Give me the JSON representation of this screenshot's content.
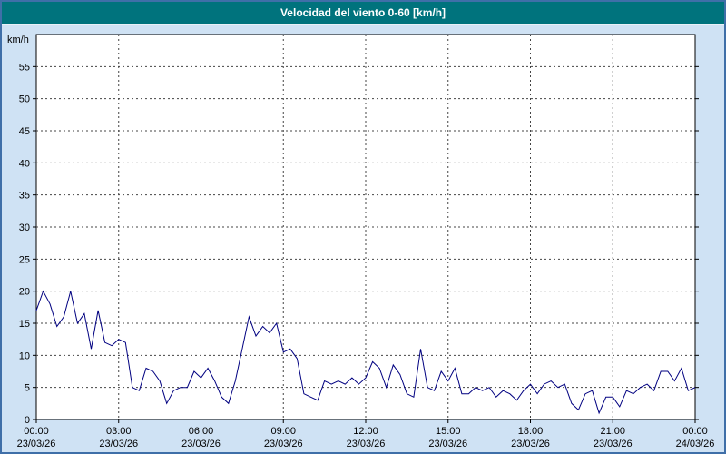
{
  "window": {
    "title": "Velocidad del viento 0-60 [km/h]"
  },
  "colors": {
    "frame": "#3f6fa8",
    "titlebar": "#00737d",
    "titlebar_text": "#ffffff",
    "background": "#cfe2f4",
    "plot_background": "#ffffff",
    "plot_border": "#000000",
    "grid": "#444444",
    "tick_text": "#000000",
    "line": "#000080"
  },
  "chart_data": {
    "type": "line",
    "title": "Velocidad del viento 0-60 [km/h]",
    "xlabel": "",
    "ylabel": "km/h",
    "ylim": [
      0,
      60
    ],
    "yticks": [
      0,
      5,
      10,
      15,
      20,
      25,
      30,
      35,
      40,
      45,
      50,
      55
    ],
    "xlim_hours": [
      0,
      24
    ],
    "xticks": [
      {
        "hour": 0,
        "time": "00:00",
        "date": "23/03/26"
      },
      {
        "hour": 3,
        "time": "03:00",
        "date": "23/03/26"
      },
      {
        "hour": 6,
        "time": "06:00",
        "date": "23/03/26"
      },
      {
        "hour": 9,
        "time": "09:00",
        "date": "23/03/26"
      },
      {
        "hour": 12,
        "time": "12:00",
        "date": "23/03/26"
      },
      {
        "hour": 15,
        "time": "15:00",
        "date": "23/03/26"
      },
      {
        "hour": 18,
        "time": "18:00",
        "date": "23/03/26"
      },
      {
        "hour": 21,
        "time": "21:00",
        "date": "23/03/26"
      },
      {
        "hour": 24,
        "time": "00:00",
        "date": "24/03/26"
      }
    ],
    "grid": true,
    "legend": "none",
    "series": [
      {
        "name": "Velocidad del viento",
        "color": "#000080",
        "x": [
          0,
          0.25,
          0.5,
          0.75,
          1,
          1.25,
          1.5,
          1.75,
          2,
          2.25,
          2.5,
          2.75,
          3,
          3.25,
          3.5,
          3.75,
          4,
          4.25,
          4.5,
          4.75,
          5,
          5.25,
          5.5,
          5.75,
          6,
          6.25,
          6.5,
          6.75,
          7,
          7.25,
          7.5,
          7.75,
          8,
          8.25,
          8.5,
          8.75,
          9,
          9.25,
          9.5,
          9.75,
          10,
          10.25,
          10.5,
          10.75,
          11,
          11.25,
          11.5,
          11.75,
          12,
          12.25,
          12.5,
          12.75,
          13,
          13.25,
          13.5,
          13.75,
          14,
          14.25,
          14.5,
          14.75,
          15,
          15.25,
          15.5,
          15.75,
          16,
          16.25,
          16.5,
          16.75,
          17,
          17.25,
          17.5,
          17.75,
          18,
          18.25,
          18.5,
          18.75,
          19,
          19.25,
          19.5,
          19.75,
          20,
          20.25,
          20.5,
          20.75,
          21,
          21.25,
          21.5,
          21.75,
          22,
          22.25,
          22.5,
          22.75,
          23,
          23.25,
          23.5,
          23.75,
          24
        ],
        "values": [
          17,
          20,
          18,
          14.5,
          16,
          20,
          15,
          16.5,
          11,
          17,
          12,
          11.5,
          12.5,
          12,
          5,
          4.5,
          8,
          7.5,
          6,
          2.5,
          4.5,
          5,
          5,
          7.5,
          6.5,
          8,
          6,
          3.5,
          2.5,
          6,
          11,
          16,
          13,
          14.5,
          13.5,
          15,
          10.5,
          11,
          9.5,
          4,
          3.5,
          3,
          6,
          5.5,
          6,
          5.5,
          6.5,
          5.5,
          6.5,
          9,
          8,
          5,
          8.5,
          7,
          4,
          3.5,
          11,
          5,
          4.5,
          7.5,
          6,
          8,
          4,
          4,
          5,
          4.5,
          5,
          3.5,
          4.5,
          4,
          3,
          4.5,
          5.5,
          4,
          5.5,
          6,
          5,
          5.5,
          2.5,
          1.5,
          4,
          4.5,
          1,
          3.5,
          3.5,
          2,
          4.5,
          4,
          5,
          5.5,
          4.5,
          7.5,
          7.5,
          6,
          8,
          4.5,
          5
        ]
      }
    ]
  }
}
